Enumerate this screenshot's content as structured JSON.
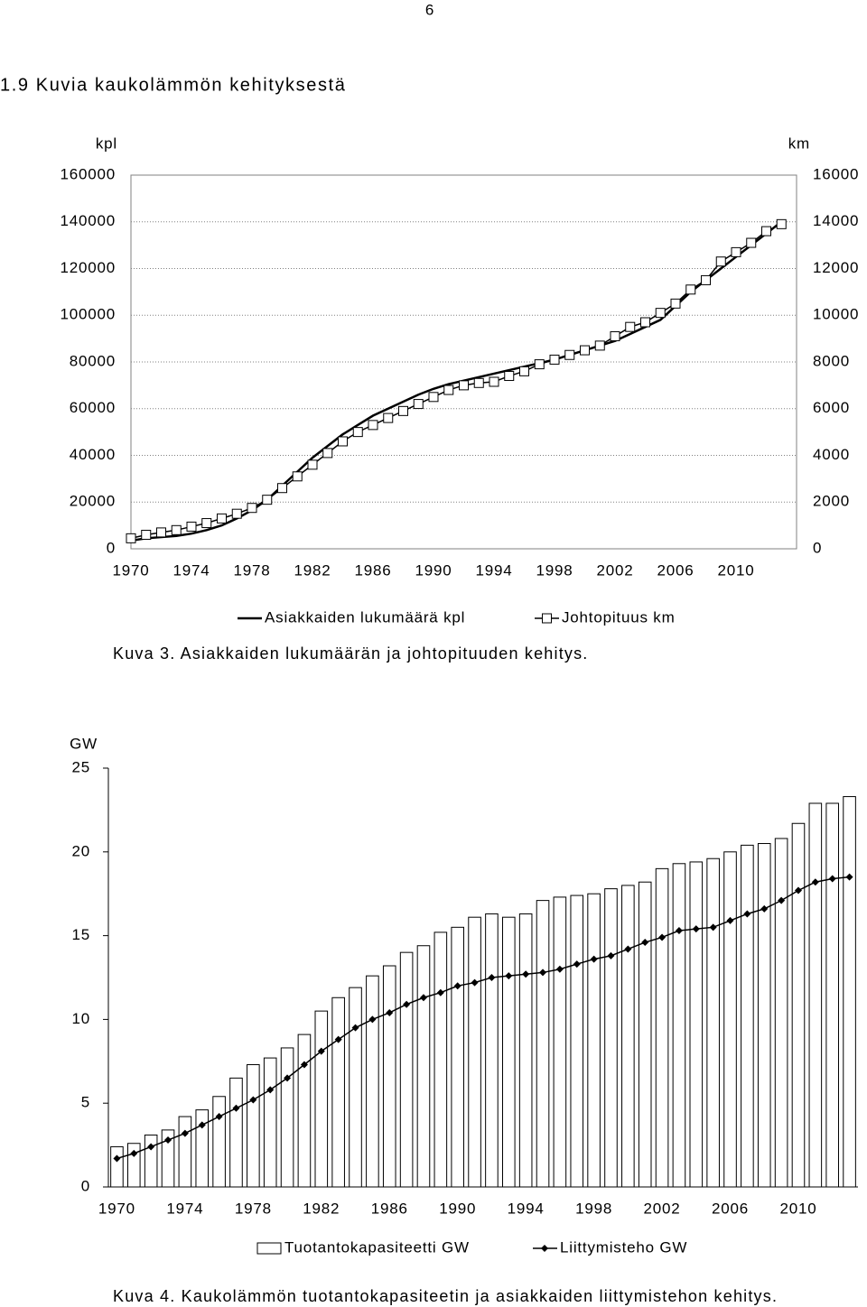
{
  "page_number": "6",
  "heading": "1.9 Kuvia kaukolämmön kehityksestä",
  "chart_data": [
    {
      "type": "line",
      "ylabel": "kpl",
      "y2label": "km",
      "caption": "Kuva 3. Asiakkaiden lukumäärän ja johtopituuden kehitys.",
      "x": [
        1970,
        1971,
        1972,
        1973,
        1974,
        1975,
        1976,
        1977,
        1978,
        1979,
        1980,
        1981,
        1982,
        1983,
        1984,
        1985,
        1986,
        1987,
        1988,
        1989,
        1990,
        1991,
        1992,
        1993,
        1994,
        1995,
        1996,
        1997,
        1998,
        1999,
        2000,
        2001,
        2002,
        2003,
        2004,
        2005,
        2006,
        2007,
        2008,
        2009,
        2010,
        2011,
        2012,
        2013
      ],
      "xlim": [
        1970,
        2014
      ],
      "xticks": [
        1970,
        1974,
        1978,
        1982,
        1986,
        1990,
        1994,
        1998,
        2002,
        2006,
        2010
      ],
      "ylim": [
        0,
        160000
      ],
      "yticks": [
        0,
        20000,
        40000,
        60000,
        80000,
        100000,
        120000,
        140000,
        160000
      ],
      "y2lim": [
        0,
        16000
      ],
      "y2ticks": [
        0,
        2000,
        4000,
        6000,
        8000,
        10000,
        12000,
        14000,
        16000
      ],
      "grid": true,
      "series": [
        {
          "name": "Asiakkaiden lukumäärä kpl",
          "color": "#000000",
          "values": [
            3500,
            4500,
            5000,
            5500,
            6500,
            8000,
            10000,
            13000,
            16500,
            21000,
            27000,
            33000,
            39000,
            44000,
            49000,
            53000,
            57000,
            60000,
            63000,
            66000,
            68500,
            70500,
            72000,
            73500,
            75000,
            76500,
            78000,
            79500,
            81000,
            83000,
            85000,
            87000,
            89000,
            92000,
            95000,
            98000,
            104000,
            110000,
            115000,
            120000,
            125000,
            130000,
            135000,
            140000
          ]
        },
        {
          "name": "Johtopituus km",
          "color": "#000000",
          "marker": "square",
          "axis": "y2",
          "values": [
            450,
            600,
            700,
            800,
            950,
            1100,
            1300,
            1500,
            1750,
            2100,
            2600,
            3100,
            3600,
            4100,
            4600,
            5000,
            5300,
            5600,
            5900,
            6200,
            6500,
            6800,
            7000,
            7100,
            7150,
            7400,
            7600,
            7900,
            8100,
            8300,
            8500,
            8700,
            9100,
            9500,
            9700,
            10100,
            10500,
            11100,
            11500,
            12300,
            12700,
            13100,
            13600,
            13900
          ]
        }
      ]
    },
    {
      "type": "bar",
      "ylabel": "GW",
      "caption": "Kuva 4. Kaukolämmön tuotantokapasiteetin ja asiakkaiden liittymistehon kehitys.",
      "x": [
        1970,
        1971,
        1972,
        1973,
        1974,
        1975,
        1976,
        1977,
        1978,
        1979,
        1980,
        1981,
        1982,
        1983,
        1984,
        1985,
        1986,
        1987,
        1988,
        1989,
        1990,
        1991,
        1992,
        1993,
        1994,
        1995,
        1996,
        1997,
        1998,
        1999,
        2000,
        2001,
        2002,
        2003,
        2004,
        2005,
        2006,
        2007,
        2008,
        2009,
        2010,
        2011,
        2012,
        2013
      ],
      "xlim": [
        1969.5,
        2013.5
      ],
      "xticks": [
        1970,
        1974,
        1978,
        1982,
        1986,
        1990,
        1994,
        1998,
        2002,
        2006,
        2010
      ],
      "ylim": [
        0,
        25
      ],
      "yticks": [
        0,
        5,
        10,
        15,
        20,
        25
      ],
      "grid": false,
      "series": [
        {
          "name": "Tuotantokapasiteetti GW",
          "color": "#ffffff",
          "type": "bar",
          "values": [
            2.4,
            2.6,
            3.1,
            3.4,
            4.2,
            4.6,
            5.4,
            6.5,
            7.3,
            7.7,
            8.3,
            9.1,
            10.5,
            11.3,
            11.9,
            12.6,
            13.2,
            14.0,
            14.4,
            15.2,
            15.5,
            16.1,
            16.3,
            16.1,
            16.3,
            17.1,
            17.3,
            17.4,
            17.5,
            17.8,
            18.0,
            18.2,
            19.0,
            19.3,
            19.4,
            19.6,
            20.0,
            20.4,
            20.5,
            20.8,
            21.7,
            22.9,
            22.9,
            23.3
          ]
        },
        {
          "name": "Liittymisteho GW",
          "color": "#000000",
          "type": "line",
          "marker": "diamond",
          "values": [
            1.7,
            2.0,
            2.4,
            2.8,
            3.2,
            3.7,
            4.2,
            4.7,
            5.2,
            5.8,
            6.5,
            7.3,
            8.1,
            8.8,
            9.5,
            10.0,
            10.4,
            10.9,
            11.3,
            11.6,
            12.0,
            12.2,
            12.5,
            12.6,
            12.7,
            12.8,
            13.0,
            13.3,
            13.6,
            13.8,
            14.2,
            14.6,
            14.9,
            15.3,
            15.4,
            15.5,
            15.9,
            16.3,
            16.6,
            17.1,
            17.7,
            18.2,
            18.4,
            18.5
          ]
        }
      ]
    }
  ]
}
